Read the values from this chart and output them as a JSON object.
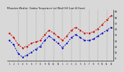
{
  "title": "Milwaukee Weather  Outdoor Temperature (vs) Wind Chill (Last 24 Hours)",
  "bg_color": "#d8d8d8",
  "plot_bg_color": "#d8d8d8",
  "red_line_color": "#cc0000",
  "blue_line_color": "#0000cc",
  "grid_color": "#888888",
  "temp_values": [
    38,
    32,
    22,
    18,
    20,
    24,
    26,
    28,
    36,
    42,
    38,
    33,
    28,
    34,
    42,
    46,
    42,
    38,
    38,
    40,
    44,
    50,
    56,
    62
  ],
  "windchill_values": [
    28,
    22,
    10,
    5,
    8,
    12,
    16,
    20,
    28,
    34,
    29,
    24,
    18,
    24,
    32,
    36,
    32,
    28,
    28,
    30,
    34,
    38,
    42,
    46
  ],
  "x_labels": [
    "1",
    "2",
    "3",
    "4",
    "5",
    "6",
    "7",
    "8",
    "9",
    "10",
    "11",
    "12",
    "1",
    "2",
    "3",
    "4",
    "5",
    "6",
    "7",
    "8",
    "9",
    "10",
    "11",
    "12"
  ],
  "ylim": [
    0,
    70
  ],
  "yticks": [
    4,
    12,
    20,
    28,
    36,
    44,
    52,
    60,
    68
  ],
  "ytick_labels": [
    "4",
    "12",
    "20",
    "28",
    "36",
    "44",
    "52",
    "60",
    "68"
  ],
  "n_points": 24
}
